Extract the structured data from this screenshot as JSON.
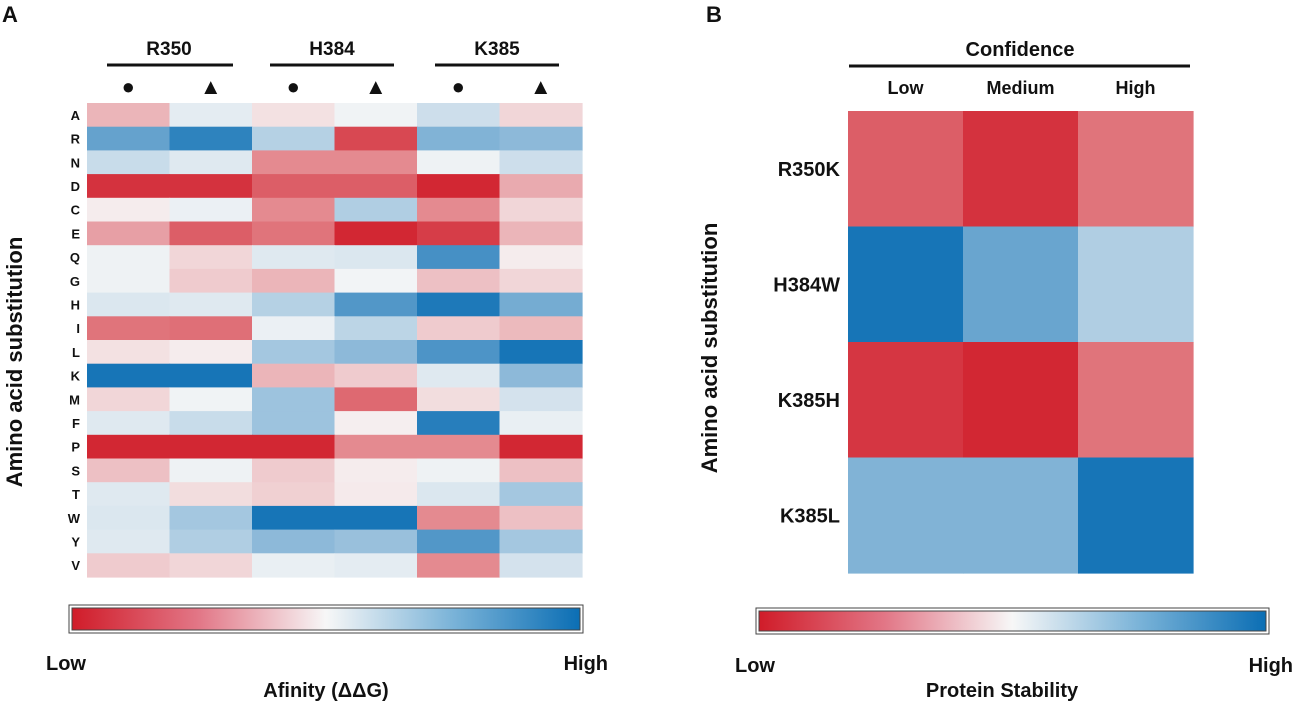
{
  "chart_data": [
    {
      "panel_label": "A",
      "type": "heatmap",
      "ylabel": "Amino acid substitution",
      "colorbar_label": "Afinity (ΔΔG)",
      "colorbar_low": "Low",
      "colorbar_high": "High",
      "value_range": [
        -1,
        1
      ],
      "groups": [
        "R350",
        "H384",
        "K385"
      ],
      "marker_labels": [
        "●",
        "▲",
        "●",
        "▲",
        "●",
        "▲"
      ],
      "rows": [
        "A",
        "R",
        "N",
        "D",
        "C",
        "E",
        "Q",
        "G",
        "H",
        "I",
        "L",
        "K",
        "M",
        "F",
        "P",
        "S",
        "T",
        "W",
        "Y",
        "V"
      ],
      "values": [
        [
          -0.3,
          0.08,
          -0.1,
          0.03,
          0.18,
          -0.15
        ],
        [
          0.62,
          0.85,
          0.28,
          -0.8,
          0.5,
          0.45
        ],
        [
          0.2,
          0.1,
          -0.5,
          -0.5,
          0.04,
          0.18
        ],
        [
          -0.9,
          -0.9,
          -0.7,
          -0.7,
          -0.95,
          -0.35
        ],
        [
          -0.05,
          0.05,
          -0.5,
          0.3,
          -0.5,
          -0.15
        ],
        [
          -0.4,
          -0.7,
          -0.6,
          -0.95,
          -0.85,
          -0.3
        ],
        [
          0.04,
          -0.15,
          0.1,
          0.12,
          0.75,
          -0.05
        ],
        [
          0.04,
          -0.2,
          -0.3,
          0.02,
          -0.25,
          -0.15
        ],
        [
          0.12,
          0.1,
          0.28,
          0.7,
          0.92,
          0.55
        ],
        [
          -0.6,
          -0.62,
          0.05,
          0.25,
          -0.2,
          -0.28
        ],
        [
          -0.1,
          -0.05,
          0.35,
          0.45,
          0.72,
          0.95
        ],
        [
          0.95,
          0.95,
          -0.3,
          -0.2,
          0.1,
          0.45
        ],
        [
          -0.15,
          0.03,
          0.38,
          -0.65,
          -0.12,
          0.15
        ],
        [
          0.1,
          0.2,
          0.38,
          -0.04,
          0.88,
          0.06
        ],
        [
          -0.95,
          -0.95,
          -0.95,
          -0.5,
          -0.5,
          -0.95
        ],
        [
          -0.25,
          0.04,
          -0.2,
          -0.05,
          0.04,
          -0.25
        ],
        [
          0.1,
          -0.12,
          -0.18,
          -0.06,
          0.12,
          0.35
        ],
        [
          0.12,
          0.35,
          0.95,
          0.95,
          -0.5,
          -0.25
        ],
        [
          0.1,
          0.3,
          0.45,
          0.4,
          0.7,
          0.35
        ],
        [
          -0.2,
          -0.15,
          0.06,
          0.08,
          -0.5,
          0.15
        ]
      ]
    },
    {
      "panel_label": "B",
      "type": "heatmap",
      "title": "Confidence",
      "ylabel": "Amino acid substitution",
      "colorbar_label": "Protein Stability",
      "colorbar_low": "Low",
      "colorbar_high": "High",
      "value_range": [
        -1,
        1
      ],
      "columns": [
        "Low",
        "Medium",
        "High"
      ],
      "rows": [
        "R350K",
        "H384W",
        "K385H",
        "K385L"
      ],
      "values": [
        [
          -0.7,
          -0.9,
          -0.6
        ],
        [
          0.95,
          0.6,
          0.3
        ],
        [
          -0.88,
          -0.95,
          -0.6
        ],
        [
          0.5,
          0.5,
          0.95
        ]
      ]
    }
  ]
}
